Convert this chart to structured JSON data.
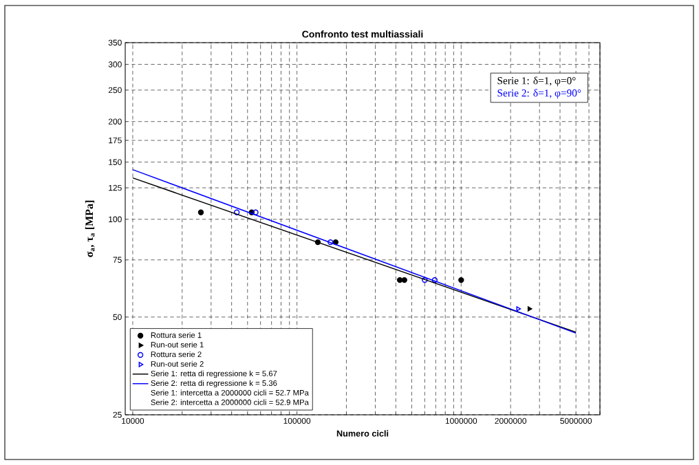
{
  "chart_data": {
    "type": "scatter",
    "title": "Confronto test multiassiali",
    "xlabel": "Numero cicli",
    "ylabel": "σ$_{a}$, τ$_{a}$ [MPa]",
    "log": "xy",
    "grid": true,
    "legend": "bottom left",
    "xlim": [
      9000,
      7000000
    ],
    "ylim": [
      25,
      350
    ],
    "xticks": [
      10000,
      {
        "value": 20000,
        "label": null
      },
      {
        "value": 30000,
        "label": null
      },
      {
        "value": 40000,
        "label": null
      },
      {
        "value": 50000,
        "label": null
      },
      {
        "value": 60000,
        "label": null
      },
      {
        "value": 70000,
        "label": null
      },
      {
        "value": 80000,
        "label": null
      },
      {
        "value": 90000,
        "label": null
      },
      100000,
      {
        "value": 200000,
        "label": null
      },
      {
        "value": 300000,
        "label": null
      },
      {
        "value": 400000,
        "label": null
      },
      {
        "value": 500000,
        "label": null
      },
      {
        "value": 600000,
        "label": null
      },
      {
        "value": 700000,
        "label": null
      },
      {
        "value": 800000,
        "label": null
      },
      {
        "value": 900000,
        "label": null
      },
      1000000,
      2000000,
      {
        "value": 3000000,
        "label": null
      },
      {
        "value": 4000000,
        "label": null
      },
      5000000,
      {
        "value": 6000000,
        "label": null
      },
      {
        "value": 7000000,
        "label": null
      }
    ],
    "yticks": [
      25,
      50,
      75,
      100,
      125,
      150,
      175,
      200,
      250,
      300,
      350
    ],
    "series": [
      {
        "name": "Rottura serie 1",
        "marker": "circle",
        "color": "#000000",
        "x": [
          26000,
          53000,
          134000,
          172000,
          423000,
          451000,
          1000000
        ],
        "values": [
          105,
          105,
          85,
          85,
          65,
          65,
          65
        ]
      },
      {
        "name": "Run-out serie 1",
        "marker": "triangle",
        "color": "#000000",
        "x": [
          2600000
        ],
        "values": [
          53
        ]
      },
      {
        "name": "Rottura serie 2",
        "marker": "circle",
        "color": "#0000ff",
        "x": [
          43000,
          56000,
          160000,
          600000,
          690000
        ],
        "values": [
          105,
          105,
          85,
          65,
          65
        ]
      },
      {
        "name": "Run-out serie 2",
        "marker": "triangle",
        "color": "#0000ff",
        "x": [
          2220000
        ],
        "values": [
          53
        ]
      },
      {
        "name": "Serie 1: retta di regressione k = 5.67",
        "type": "line",
        "line_style": "solid",
        "color": "#000000",
        "x": [
          10000,
          5000000
        ],
        "values": [
          134.1,
          44.9
        ]
      },
      {
        "name": "Serie 2: retta di regressione k = 5.36",
        "type": "line",
        "line_style": "solid",
        "color": "#0000ff",
        "x": [
          10000,
          5000000
        ],
        "values": [
          142.2,
          44.6
        ]
      }
    ],
    "annotations": [
      "Serie 1: δ=1, φ=0°",
      "Serie 2: δ=1, φ=90°",
      "Serie 1: intercetta a 2000000 cicli = 52.7 MPa",
      "Serie 2: intercetta a 2000000 cicli = 52.9 MPa"
    ]
  }
}
